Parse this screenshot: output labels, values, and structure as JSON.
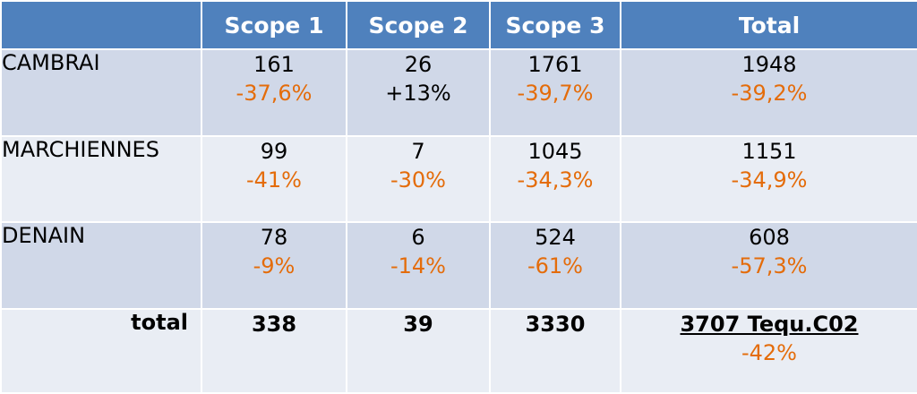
{
  "chart_data": {
    "type": "table",
    "columns": [
      "",
      "Scope 1",
      "Scope 2",
      "Scope 3",
      "Total"
    ],
    "rows": [
      {
        "label": "CAMBRAI",
        "cells": [
          {
            "value": "161",
            "change": "-37,6%",
            "change_color": "#e46c0a"
          },
          {
            "value": "26",
            "change": "+13%",
            "change_color": "#000000"
          },
          {
            "value": "1761",
            "change": "-39,7%",
            "change_color": "#e46c0a"
          },
          {
            "value": "1948",
            "change": "-39,2%",
            "change_color": "#e46c0a"
          }
        ]
      },
      {
        "label": "MARCHIENNES",
        "cells": [
          {
            "value": "99",
            "change": "-41%",
            "change_color": "#e46c0a"
          },
          {
            "value": "7",
            "change": "-30%",
            "change_color": "#e46c0a"
          },
          {
            "value": "1045",
            "change": "-34,3%",
            "change_color": "#e46c0a"
          },
          {
            "value": "1151",
            "change": "-34,9%",
            "change_color": "#e46c0a"
          }
        ]
      },
      {
        "label": "DENAIN",
        "cells": [
          {
            "value": "78",
            "change": "-9%",
            "change_color": "#e46c0a"
          },
          {
            "value": "6",
            "change": "-14%",
            "change_color": "#e46c0a"
          },
          {
            "value": "524",
            "change": "-61%",
            "change_color": "#e46c0a"
          },
          {
            "value": "608",
            "change": "-57,3%",
            "change_color": "#e46c0a"
          }
        ]
      }
    ],
    "total_row": {
      "label": "total",
      "cells": [
        {
          "value": "338"
        },
        {
          "value": "39"
        },
        {
          "value": "3330"
        },
        {
          "value": "3707 Tequ.C02",
          "change": "-42%",
          "change_color": "#e46c0a"
        }
      ]
    }
  },
  "colors": {
    "header_bg": "#4f81bd",
    "header_text": "#ffffff",
    "row_dark": "#d0d8e8",
    "row_light": "#e9edf4",
    "decrease": "#e46c0a"
  }
}
